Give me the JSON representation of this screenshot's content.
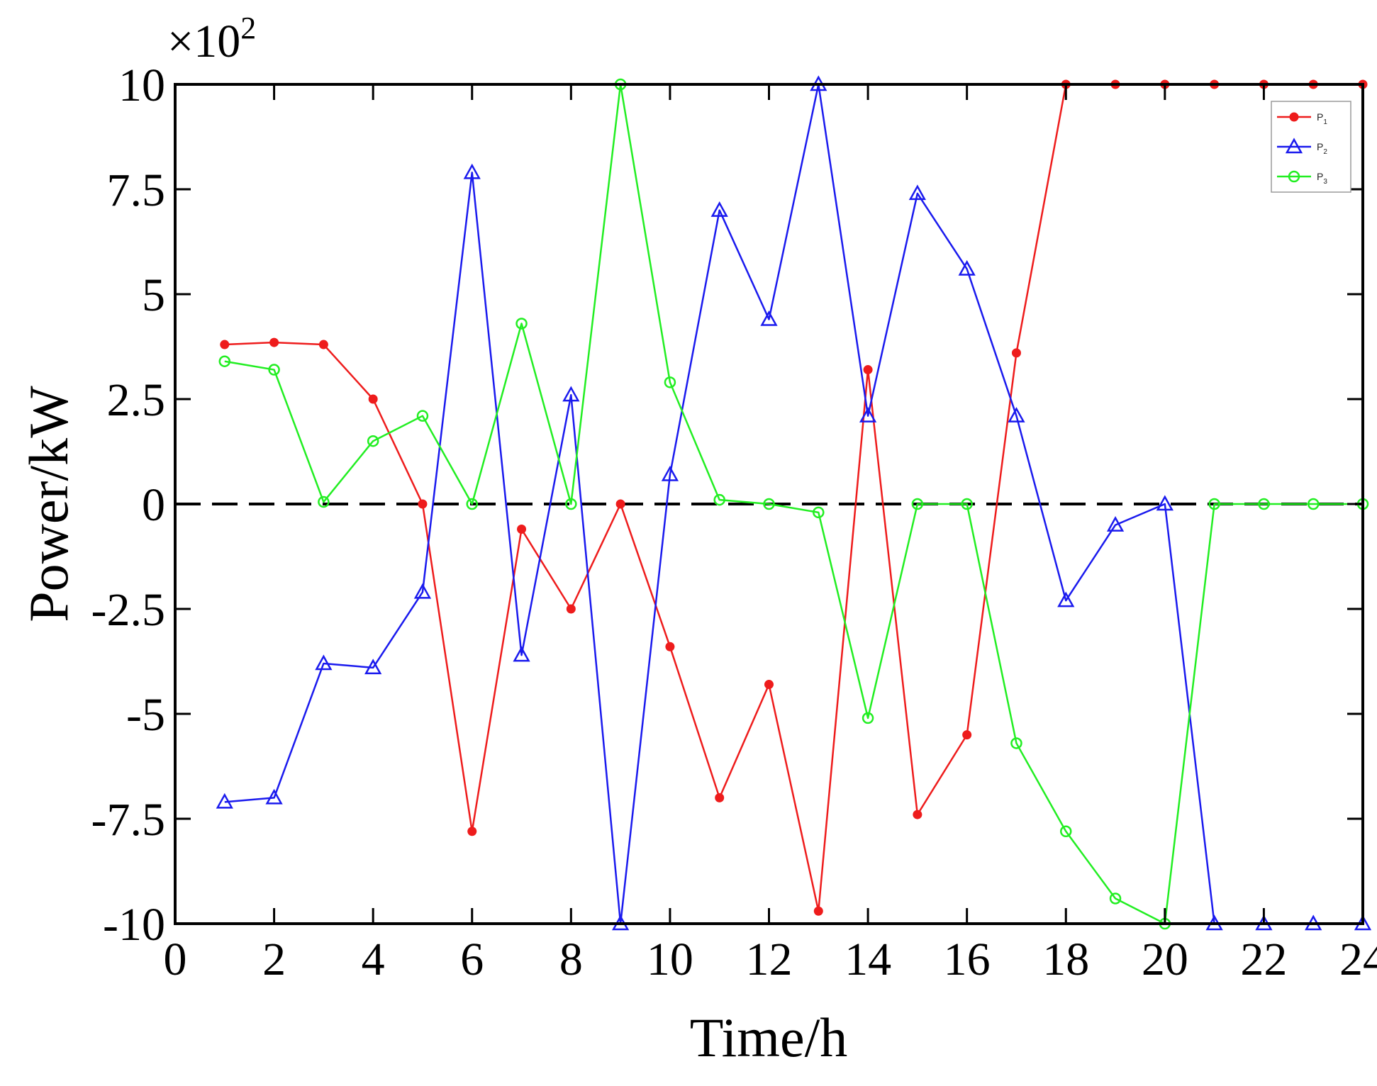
{
  "chart_data": {
    "type": "line",
    "xlabel": "Time/h",
    "ylabel": "Power/kW",
    "y_multiplier": "×10",
    "y_multiplier_exp": "2",
    "xlim": [
      0,
      24
    ],
    "ylim": [
      -10,
      10
    ],
    "x_ticks": [
      0,
      2,
      4,
      6,
      8,
      10,
      12,
      14,
      16,
      18,
      20,
      22,
      24
    ],
    "y_ticks": [
      -10,
      -7.5,
      -5,
      -2.5,
      0,
      2.5,
      5,
      7.5,
      10
    ],
    "y_tick_labels": [
      "-10",
      "-7.5",
      "-5",
      "-2.5",
      "0",
      "2.5",
      "5",
      "7.5",
      "10"
    ],
    "x_tick_labels": [
      "0",
      "2",
      "4",
      "6",
      "8",
      "10",
      "12",
      "14",
      "16",
      "18",
      "20",
      "22",
      "24"
    ],
    "zero_line": "dashed",
    "legend_position": "top-right",
    "x": [
      1,
      2,
      3,
      4,
      5,
      6,
      7,
      8,
      9,
      10,
      11,
      12,
      13,
      14,
      15,
      16,
      17,
      18,
      19,
      20,
      21,
      22,
      23,
      24
    ],
    "series": [
      {
        "name": "P",
        "sub": "1",
        "color": "#ee1c1c",
        "marker": "dot",
        "values": [
          3.8,
          3.85,
          3.8,
          2.5,
          0,
          -7.8,
          -0.6,
          -2.5,
          0,
          -3.4,
          -7.0,
          -4.3,
          -9.7,
          3.2,
          -7.4,
          -5.5,
          3.6,
          10,
          10,
          10,
          10,
          10,
          10,
          10
        ]
      },
      {
        "name": "P",
        "sub": "2",
        "color": "#1a1aee",
        "marker": "triangle",
        "values": [
          -7.1,
          -7.0,
          -3.8,
          -3.9,
          -2.1,
          7.9,
          -3.6,
          2.6,
          -10,
          0.7,
          7.0,
          4.4,
          10,
          2.1,
          7.4,
          5.6,
          2.1,
          -2.3,
          -0.5,
          0,
          -10,
          -10,
          -10,
          -10
        ]
      },
      {
        "name": "P",
        "sub": "3",
        "color": "#22ee22",
        "marker": "circle",
        "values": [
          3.4,
          3.2,
          0.05,
          1.5,
          2.1,
          0,
          4.3,
          0,
          10,
          2.9,
          0.1,
          0,
          -0.2,
          -5.1,
          0,
          0,
          -5.7,
          -7.8,
          -9.4,
          -10,
          0,
          0,
          0,
          0
        ]
      }
    ]
  }
}
